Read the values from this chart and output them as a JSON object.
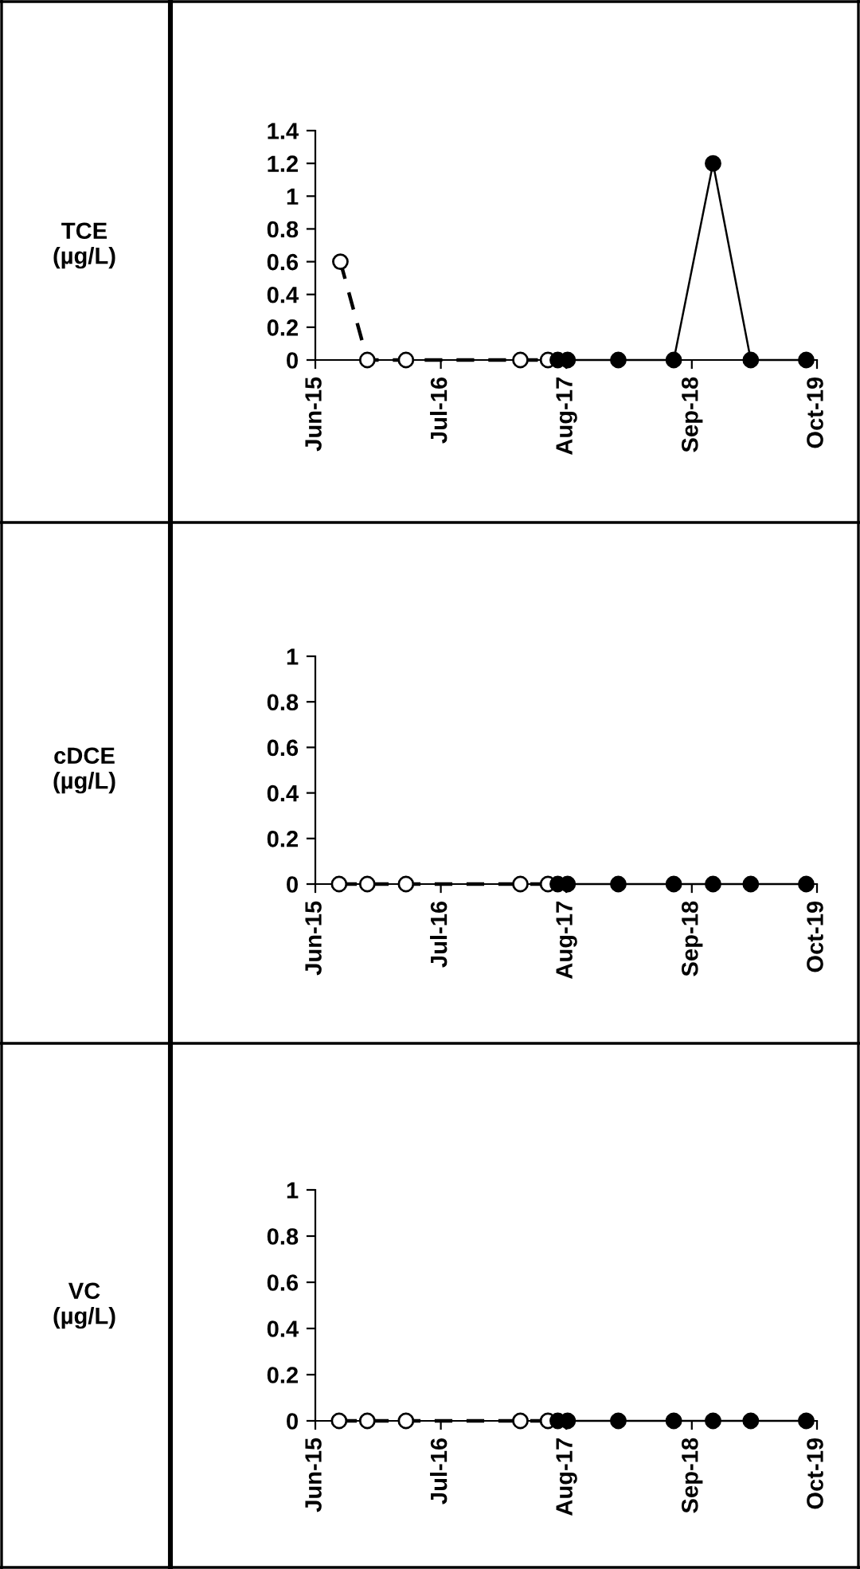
{
  "chart_data": [
    {
      "type": "line",
      "ylabel": "TCE\n(µg/L)",
      "xlim": [
        "2015-06-01",
        "2019-10-01"
      ],
      "ylim": [
        0,
        1.4
      ],
      "yticks": [
        0,
        0.2,
        0.4,
        0.6,
        0.8,
        {
          "value": 1,
          "label": "1"
        },
        1.2,
        1.4
      ],
      "xticks": [
        {
          "value": "2015-06-01",
          "label": "Jun-15"
        },
        {
          "value": "2016-07-01",
          "label": "Jul-16"
        },
        {
          "value": "2017-08-01",
          "label": "Aug-17"
        },
        {
          "value": "2018-09-01",
          "label": "Sep-18"
        },
        {
          "value": "2019-10-01",
          "label": "Oct-19"
        }
      ],
      "marker": "circle",
      "grid": false,
      "legend": false,
      "series": [
        {
          "color": "#ffffff",
          "line_style": "dashed",
          "x": [
            "2015-08-19",
            "2015-11-12",
            "2016-03-13",
            "2017-03-09",
            "2017-06-04"
          ],
          "values": [
            0.6,
            0,
            0,
            0,
            0
          ]
        },
        {
          "color": "#000000",
          "line_style": "solid",
          "x": [
            "2017-07-05",
            "2017-08-05",
            "2018-01-12",
            "2018-07-06",
            "2018-11-07",
            "2019-03-06",
            "2019-08-28"
          ],
          "values": [
            0,
            0,
            0,
            0,
            1.2,
            0,
            0
          ]
        }
      ]
    },
    {
      "type": "line",
      "ylabel": "cDCE\n(µg/L)",
      "xlim": [
        "2015-06-01",
        "2019-10-01"
      ],
      "ylim": [
        0,
        1
      ],
      "yticks": [
        0,
        0.2,
        0.4,
        0.6,
        0.8,
        1
      ],
      "xticks": [
        {
          "value": "2015-06-01",
          "label": "Jun-15"
        },
        {
          "value": "2016-07-01",
          "label": "Jul-16"
        },
        {
          "value": "2017-08-01",
          "label": "Aug-17"
        },
        {
          "value": "2018-09-01",
          "label": "Sep-18"
        },
        {
          "value": "2019-10-01",
          "label": "Oct-19"
        }
      ],
      "marker": "circle",
      "grid": false,
      "legend": false,
      "series": [
        {
          "color": "#ffffff",
          "line_style": "dashed",
          "x": [
            "2015-08-15",
            "2015-11-12",
            "2016-03-13",
            "2017-03-09",
            "2017-06-04"
          ],
          "values": [
            0,
            0,
            0,
            0,
            0
          ]
        },
        {
          "color": "#000000",
          "line_style": "solid",
          "x": [
            "2017-07-05",
            "2017-08-05",
            "2018-01-12",
            "2018-07-06",
            "2018-11-07",
            "2019-03-06",
            "2019-08-28"
          ],
          "values": [
            0,
            0,
            0,
            0,
            0,
            0,
            0
          ]
        }
      ]
    },
    {
      "type": "line",
      "ylabel": "VC\n(µg/L)",
      "xlim": [
        "2015-06-01",
        "2019-10-01"
      ],
      "ylim": [
        0,
        1
      ],
      "yticks": [
        0,
        0.2,
        0.4,
        0.6,
        0.8,
        1
      ],
      "xticks": [
        {
          "value": "2015-06-01",
          "label": "Jun-15"
        },
        {
          "value": "2016-07-01",
          "label": "Jul-16"
        },
        {
          "value": "2017-08-01",
          "label": "Aug-17"
        },
        {
          "value": "2018-09-01",
          "label": "Sep-18"
        },
        {
          "value": "2019-10-01",
          "label": "Oct-19"
        }
      ],
      "marker": "circle",
      "grid": false,
      "legend": false,
      "series": [
        {
          "color": "#ffffff",
          "line_style": "dashed",
          "x": [
            "2015-08-15",
            "2015-11-12",
            "2016-03-13",
            "2017-03-09",
            "2017-06-04"
          ],
          "values": [
            0,
            0,
            0,
            0,
            0
          ]
        },
        {
          "color": "#000000",
          "line_style": "solid",
          "x": [
            "2017-07-05",
            "2017-08-05",
            "2018-01-12",
            "2018-07-06",
            "2018-11-07",
            "2019-03-06",
            "2019-08-28"
          ],
          "values": [
            0,
            0,
            0,
            0,
            0,
            0,
            0
          ]
        }
      ]
    }
  ]
}
